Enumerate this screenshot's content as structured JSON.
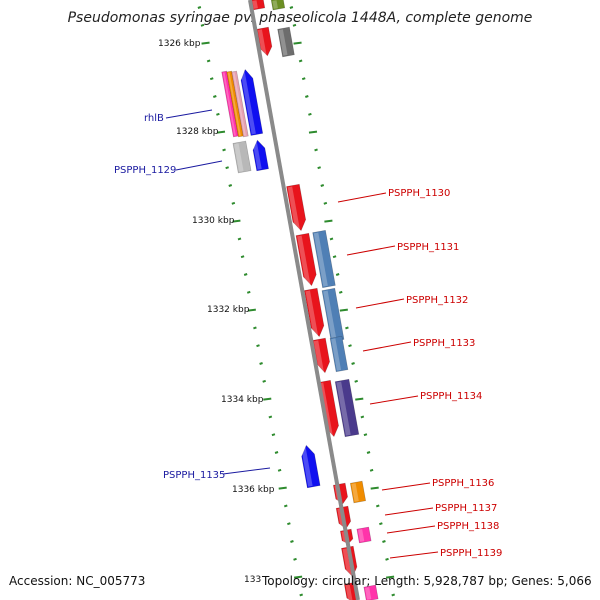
{
  "title": "Pseudomonas syringae pv. phaseolicola 1448A, complete genome",
  "footer": {
    "accession": "Accession: NC_005773",
    "topology": "Topology: circular; Length: 5,928,787 bp; Genes: 5,066"
  },
  "ticks": [
    "1326 kbp",
    "1328 kbp",
    "1330 kbp",
    "1332 kbp",
    "1334 kbp",
    "1336 kbp",
    "133"
  ],
  "left_labels": [
    {
      "text": "rhlB",
      "color": "#1a1aa0"
    },
    {
      "text": "PSPPH_1129",
      "color": "#1a1aa0"
    },
    {
      "text": "PSPPH_1135",
      "color": "#1a1aa0"
    }
  ],
  "right_labels": [
    {
      "text": "PSPPH_1130",
      "color": "#cc0000"
    },
    {
      "text": "PSPPH_1131",
      "color": "#cc0000"
    },
    {
      "text": "PSPPH_1132",
      "color": "#cc0000"
    },
    {
      "text": "PSPPH_1133",
      "color": "#cc0000"
    },
    {
      "text": "PSPPH_1134",
      "color": "#cc0000"
    },
    {
      "text": "PSPPH_1136",
      "color": "#cc0000"
    },
    {
      "text": "PSPPH_1137",
      "color": "#cc0000"
    },
    {
      "text": "PSPPH_1138",
      "color": "#cc0000"
    },
    {
      "text": "PSPPH_1139",
      "color": "#cc0000"
    }
  ],
  "colors": {
    "backbone": "#8a8a8a",
    "tick": "#2e8b2e",
    "red": "#e8141c",
    "blue": "#1010f0",
    "grey": "#b8b8b8",
    "steelblue": "#4f7fb5",
    "purple": "#4a3a8c",
    "orange": "#f08c00",
    "magenta": "#ff33aa"
  }
}
